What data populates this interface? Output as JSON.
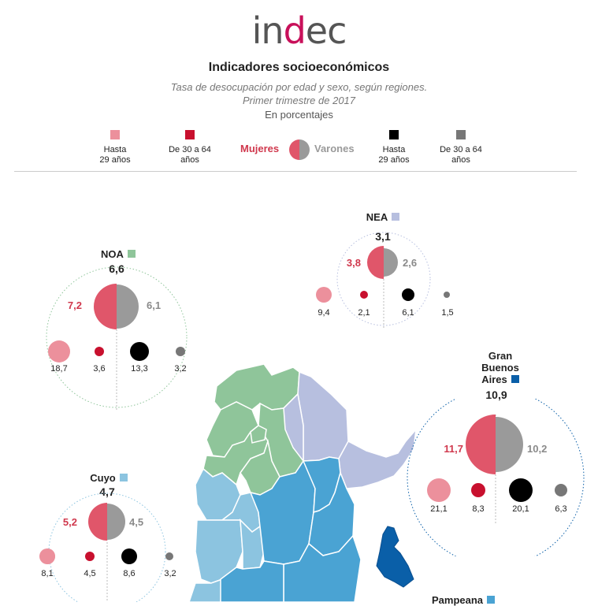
{
  "header": {
    "logo_pre": "in",
    "logo_e": "d",
    "logo_post": "ec",
    "title": "Indicadores socioeconómicos",
    "subtitle1": "Tasa de desocupación por edad y sexo, según regiones.",
    "subtitle2": "Primer trimestre de 2017",
    "units": "En porcentajes"
  },
  "legend": {
    "w_young": "Hasta\n29 años",
    "w_old": "De 30 a 64\naños",
    "mujeres": "Mujeres",
    "varones": "Varones",
    "m_young": "Hasta\n29 años",
    "m_old": "De 30 a 64\naños"
  },
  "colors": {
    "women": "#e0566a",
    "women_young": "#ec909c",
    "women_old": "#c8102e",
    "men": "#9a9a9a",
    "men_young": "#000000",
    "men_old": "#777777",
    "noa": "#8fc59a",
    "nea": "#b7bfdf",
    "cuyo": "#8cc4e0",
    "gba": "#0a5fa8",
    "pampeana": "#4aa3d3"
  },
  "regions": {
    "noa": {
      "name": "NOA",
      "total": "6,6",
      "women": "7,2",
      "men": "6,1",
      "w_young": "18,7",
      "w_old": "3,6",
      "m_young": "13,3",
      "m_old": "3,2"
    },
    "nea": {
      "name": "NEA",
      "total": "3,1",
      "women": "3,8",
      "men": "2,6",
      "w_young": "9,4",
      "w_old": "2,1",
      "m_young": "6,1",
      "m_old": "1,5"
    },
    "cuyo": {
      "name": "Cuyo",
      "total": "4,7",
      "women": "5,2",
      "men": "4,5",
      "w_young": "8,1",
      "w_old": "4,5",
      "m_young": "8,6",
      "m_old": "3,2"
    },
    "gba": {
      "name_1": "Gran",
      "name_2": "Buenos",
      "name_3": "Aires",
      "total": "10,9",
      "women": "11,7",
      "men": "10,2",
      "w_young": "21,1",
      "w_old": "8,3",
      "m_young": "20,1",
      "m_old": "6,3"
    },
    "pampeana": {
      "name": "Pampeana"
    }
  }
}
